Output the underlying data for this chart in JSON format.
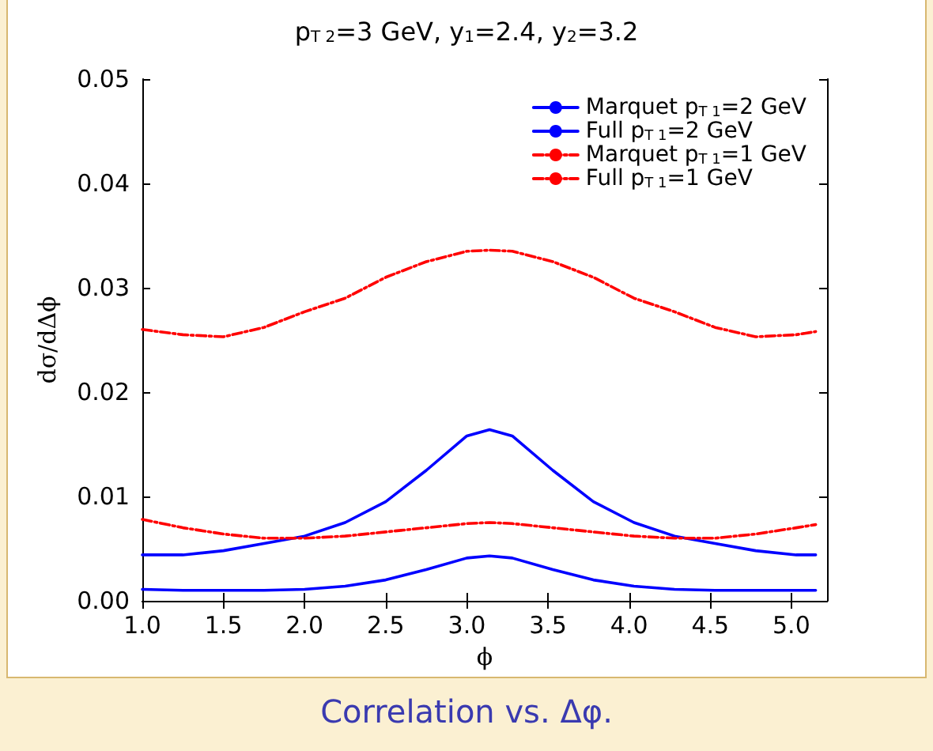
{
  "chart_data": {
    "type": "line",
    "title": "p$_{T 2}$=3 GeV, y$_{1}$=2.4, y$_{2}$=3.2",
    "xlabel": "ϕ",
    "ylabel": "dσ/dΔϕ",
    "x": [
      1.0,
      1.25,
      1.5,
      1.75,
      2.0,
      2.25,
      2.5,
      2.75,
      3.0,
      3.14,
      3.28,
      3.53,
      3.78,
      4.03,
      4.28,
      4.53,
      4.78,
      5.03,
      5.15
    ],
    "series": [
      {
        "name": "Marquet p$_{T 1}$=2 GeV",
        "color": "#0000ff",
        "line_style": "solid",
        "values": [
          0.0011,
          0.001,
          0.001,
          0.001,
          0.0011,
          0.0014,
          0.002,
          0.003,
          0.0041,
          0.0043,
          0.0041,
          0.003,
          0.002,
          0.0014,
          0.0011,
          0.001,
          0.001,
          0.001,
          0.001
        ]
      },
      {
        "name": "Full p$_{T 1}$=2 GeV",
        "color": "#0000ff",
        "line_style": "solid",
        "values": [
          0.0044,
          0.0044,
          0.0048,
          0.0055,
          0.0062,
          0.0075,
          0.0095,
          0.0125,
          0.0158,
          0.0164,
          0.0158,
          0.0125,
          0.0095,
          0.0075,
          0.0062,
          0.0055,
          0.0048,
          0.0044,
          0.0044
        ]
      },
      {
        "name": "Marquet p$_{T 1}$=1 GeV",
        "color": "#ff0000",
        "line_style": "dashed",
        "values": [
          0.0078,
          0.007,
          0.0064,
          0.006,
          0.006,
          0.0062,
          0.0066,
          0.007,
          0.0074,
          0.0075,
          0.0074,
          0.007,
          0.0066,
          0.0062,
          0.006,
          0.006,
          0.0064,
          0.007,
          0.0073
        ]
      },
      {
        "name": "Full p$_{T 1}$=1 GeV",
        "color": "#ff0000",
        "line_style": "dashed",
        "values": [
          0.026,
          0.0255,
          0.0253,
          0.0262,
          0.0277,
          0.029,
          0.031,
          0.0325,
          0.0335,
          0.0336,
          0.0335,
          0.0325,
          0.031,
          0.029,
          0.0277,
          0.0262,
          0.0253,
          0.0255,
          0.0258
        ]
      }
    ],
    "xlim": [
      1.0,
      5.22
    ],
    "xticks": [
      {
        "value": 1.0,
        "label": "1.0"
      },
      {
        "value": 1.5,
        "label": "1.5"
      },
      {
        "value": 2.0,
        "label": "2.0"
      },
      {
        "value": 2.5,
        "label": "2.5"
      },
      {
        "value": 3.0,
        "label": "3.0"
      },
      {
        "value": 3.5,
        "label": "3.5"
      },
      {
        "value": 4.0,
        "label": "4.0"
      },
      {
        "value": 4.5,
        "label": "4.5"
      },
      {
        "value": 5.0,
        "label": "5.0"
      }
    ],
    "ylim": [
      0,
      0.05
    ],
    "yticks": [
      {
        "value": 0,
        "label": "0.00"
      },
      {
        "value": 0.01,
        "label": "0.01"
      },
      {
        "value": 0.02,
        "label": "0.02"
      },
      {
        "value": 0.03,
        "label": "0.03"
      },
      {
        "value": 0.04,
        "label": "0.04"
      },
      {
        "value": 0.05,
        "label": "0.05"
      }
    ],
    "grid": false,
    "legend": "top right",
    "marker": "none",
    "annotations": [
      "Correlation vs. Δφ."
    ]
  }
}
